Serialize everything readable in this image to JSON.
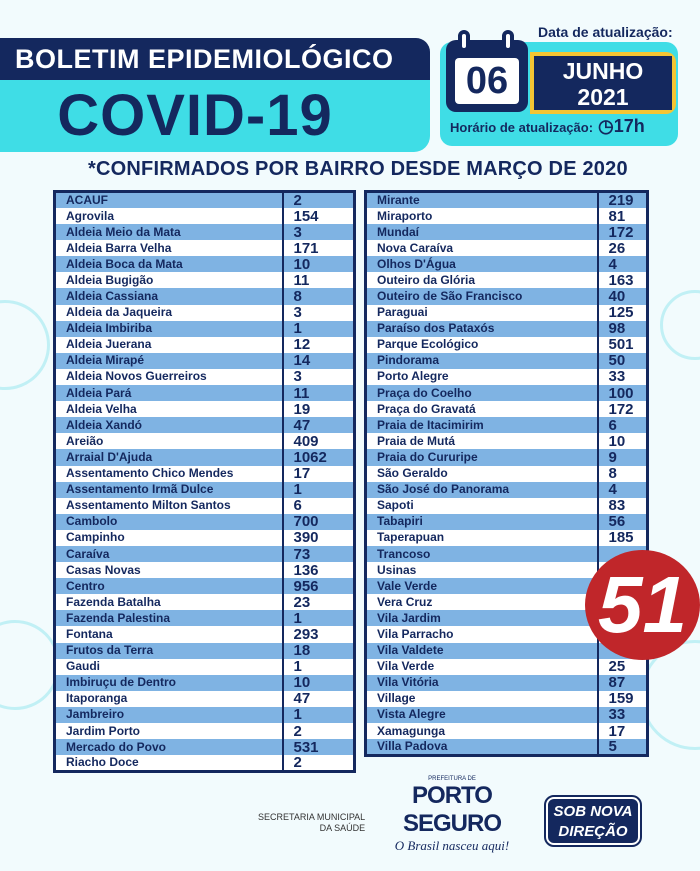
{
  "header": {
    "title": "BOLETIM EPIDEMIOLÓGICO",
    "disease": "COVID-19",
    "date_label": "Data de atualização:",
    "day": "06",
    "month": "JUNHO",
    "year": "2021",
    "time_label": "Horário de atualização:",
    "time": "17h"
  },
  "subtitle": "*CONFIRMADOS POR BAIRRO DESDE MARÇO DE 2020",
  "colors": {
    "navy": "#14285e",
    "cyan": "#3fdde6",
    "row_blue": "#7fb3e3",
    "yellow": "#f5c533",
    "logo_red": "#c0262a"
  },
  "left_table": [
    [
      "ACAUF",
      "2"
    ],
    [
      "Agrovila",
      "154"
    ],
    [
      "Aldeia Meio da Mata",
      "3"
    ],
    [
      "Aldeia Barra Velha",
      "171"
    ],
    [
      "Aldeia Boca da Mata",
      "10"
    ],
    [
      "Aldeia Bugigão",
      "11"
    ],
    [
      "Aldeia Cassiana",
      "8"
    ],
    [
      "Aldeia da Jaqueira",
      "3"
    ],
    [
      "Aldeia Imbiriba",
      "1"
    ],
    [
      "Aldeia Juerana",
      "12"
    ],
    [
      "Aldeia Mirapé",
      "14"
    ],
    [
      "Aldeia Novos Guerreiros",
      "3"
    ],
    [
      "Aldeia Pará",
      "11"
    ],
    [
      "Aldeia Velha",
      "19"
    ],
    [
      "Aldeia Xandó",
      "47"
    ],
    [
      "Areião",
      "409"
    ],
    [
      "Arraial D'Ajuda",
      "1062"
    ],
    [
      "Assentamento Chico Mendes",
      "17"
    ],
    [
      "Assentamento Irmã Dulce",
      "1"
    ],
    [
      "Assentamento Milton Santos",
      "6"
    ],
    [
      "Cambolo",
      "700"
    ],
    [
      "Campinho",
      "390"
    ],
    [
      "Caraíva",
      "73"
    ],
    [
      "Casas Novas",
      "136"
    ],
    [
      "Centro",
      "956"
    ],
    [
      "Fazenda Batalha",
      "23"
    ],
    [
      "Fazenda Palestina",
      "1"
    ],
    [
      "Fontana",
      "293"
    ],
    [
      "Frutos da Terra",
      "18"
    ],
    [
      "Gaudi",
      "1"
    ],
    [
      "Imbiruçu de Dentro",
      "10"
    ],
    [
      "Itaporanga",
      "47"
    ],
    [
      "Jambreiro",
      "1"
    ],
    [
      "Jardim Porto",
      "2"
    ],
    [
      "Mercado do Povo",
      "531"
    ],
    [
      "Riacho Doce",
      "2"
    ]
  ],
  "right_table": [
    [
      "Mirante",
      "219"
    ],
    [
      "Miraporto",
      "81"
    ],
    [
      "Mundaí",
      "172"
    ],
    [
      "Nova Caraíva",
      "26"
    ],
    [
      "Olhos D'Água",
      "4"
    ],
    [
      "Outeiro da Glória",
      "163"
    ],
    [
      "Outeiro de São Francisco",
      "40"
    ],
    [
      "Paraguai",
      "125"
    ],
    [
      "Paraíso dos Pataxós",
      "98"
    ],
    [
      "Parque Ecológico",
      "501"
    ],
    [
      "Pindorama",
      "50"
    ],
    [
      "Porto Alegre",
      "33"
    ],
    [
      "Praça do Coelho",
      "100"
    ],
    [
      "Praça do Gravatá",
      "172"
    ],
    [
      "Praia de Itacimirim",
      "6"
    ],
    [
      "Praia de Mutá",
      "10"
    ],
    [
      "Praia do Cururipe",
      "9"
    ],
    [
      "São Geraldo",
      "8"
    ],
    [
      "São José do Panorama",
      "4"
    ],
    [
      "Sapoti",
      "83"
    ],
    [
      "Tabapiri",
      "56"
    ],
    [
      "Taperapuan",
      "185"
    ],
    [
      "Trancoso",
      ""
    ],
    [
      "Usinas",
      ""
    ],
    [
      "Vale Verde",
      ""
    ],
    [
      "Vera Cruz",
      ""
    ],
    [
      "Vila Jardim",
      ""
    ],
    [
      "Vila Parracho",
      ""
    ],
    [
      "Vila Valdete",
      ""
    ],
    [
      "Vila Verde",
      "25"
    ],
    [
      "Vila Vitória",
      "87"
    ],
    [
      "Village",
      "159"
    ],
    [
      "Vista Alegre",
      "33"
    ],
    [
      "Xamagunga",
      "17"
    ],
    [
      "Villa Padova",
      "5"
    ]
  ],
  "watermark": "51",
  "footer": {
    "secretaria_line1": "SECRETARIA MUNICIPAL",
    "secretaria_line2": "DA SAÚDE",
    "pref_small": "PREFEITURA DE",
    "pref_name": "PORTO SEGURO",
    "slogan": "O Brasil nasceu aqui!",
    "badge_line1": "SOB NOVA",
    "badge_line2": "DIREÇÃO"
  }
}
